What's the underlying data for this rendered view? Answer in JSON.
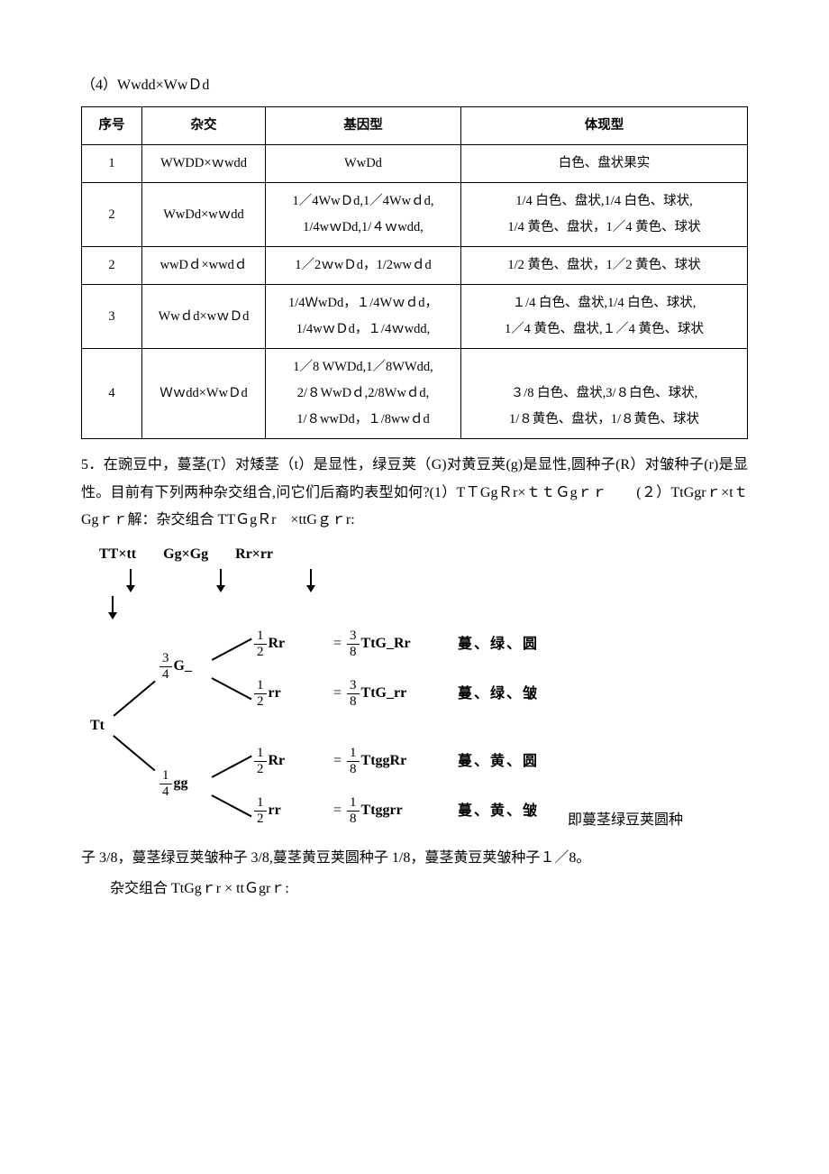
{
  "heading": "（4）Wwdd×WwＤd",
  "table": {
    "headers": [
      "序号",
      "杂交",
      "基因型",
      "体现型"
    ],
    "rows": [
      {
        "n": "1",
        "cross": "WWDD×ｗwdd",
        "geno": "WwDd",
        "pheno": "白色、盘状果实"
      },
      {
        "n": "2",
        "cross": "WwDd×wｗdd",
        "geno": "1／4WwＤd,1／4Wwｄd,\n1/4wｗDd,1/４ｗwdd,",
        "pheno": "1/4 白色、盘状,1/4 白色、球状,\n1/4 黄色、盘状，1／4 黄色、球状"
      },
      {
        "n": "2",
        "cross": "wwDｄ×wwdｄ",
        "geno": "1／2ｗwＤd，1/2wwｄd",
        "pheno": "1/2 黄色、盘状，1／2 黄色、球状"
      },
      {
        "n": "3",
        "cross": "Wwｄd×wｗＤd",
        "geno": "1/4ＷwDd，１/4Wｗｄd，\n1/4wｗＤd，１/4ｗwdd,",
        "pheno": "１/4 白色、盘状,1/4 白色、球状,\n1／4 黄色、盘状,１／4 黄色、球状"
      },
      {
        "n": "4",
        "cross": "Ｗｗdd×WwＤd",
        "geno": "1／8 WWDd,1／8WWdd,\n2/８WwDｄ,2/8Wwｄd,\n1/８wwDd，１/8wwｄd",
        "pheno": "\n３/8 白色、盘状,3/８白色、球状,\n1/８黄色、盘状，1/８黄色、球状"
      }
    ]
  },
  "q5": {
    "p1": "5．在豌豆中，蔓茎(T）对矮茎（t）是显性，绿豆荚（G)对黄豆荚(g)是显性,圆种子(R）对皱种子(r)是显性。目前有下列两种杂交组合,问它们后裔旳表型如何?(1）TＴGgＲr×ｔｔＧgｒｒ　　(２）TtGgrｒ×tｔGgｒｒ解：杂交组合 TTＧgＲr　×ttGｇｒr:",
    "trail": "即蔓茎绿豆荚圆种",
    "p2": "子 3/8，蔓茎绿豆荚皱种子 3/8,蔓茎黄豆荚圆种子 1/8，蔓茎黄豆荚皱种子１／8。",
    "p3": "杂交组合 TtGgｒr × ttＧgrｒ:"
  },
  "diagram": {
    "top": [
      "TT×tt",
      "Gg×Gg",
      "Rr×rr"
    ],
    "tt": "Tt",
    "g34": {
      "n": "3",
      "d": "4",
      "label": "G_"
    },
    "g14": {
      "n": "1",
      "d": "4",
      "label": "gg"
    },
    "rr12a": {
      "n": "1",
      "d": "2",
      "label": "Rr"
    },
    "rr12b": {
      "n": "1",
      "d": "2",
      "label": "rr"
    },
    "eq": [
      {
        "f": {
          "n": "3",
          "d": "8"
        },
        "t": "TtG_Rr",
        "cn": "蔓、绿、圆"
      },
      {
        "f": {
          "n": "3",
          "d": "8"
        },
        "t": "TtG_rr",
        "cn": "蔓、绿、皱"
      },
      {
        "f": {
          "n": "1",
          "d": "8"
        },
        "t": "TtggRr",
        "cn": "蔓、黄、圆"
      },
      {
        "f": {
          "n": "1",
          "d": "8"
        },
        "t": "Ttggrr",
        "cn": "蔓、黄、皱"
      }
    ]
  }
}
